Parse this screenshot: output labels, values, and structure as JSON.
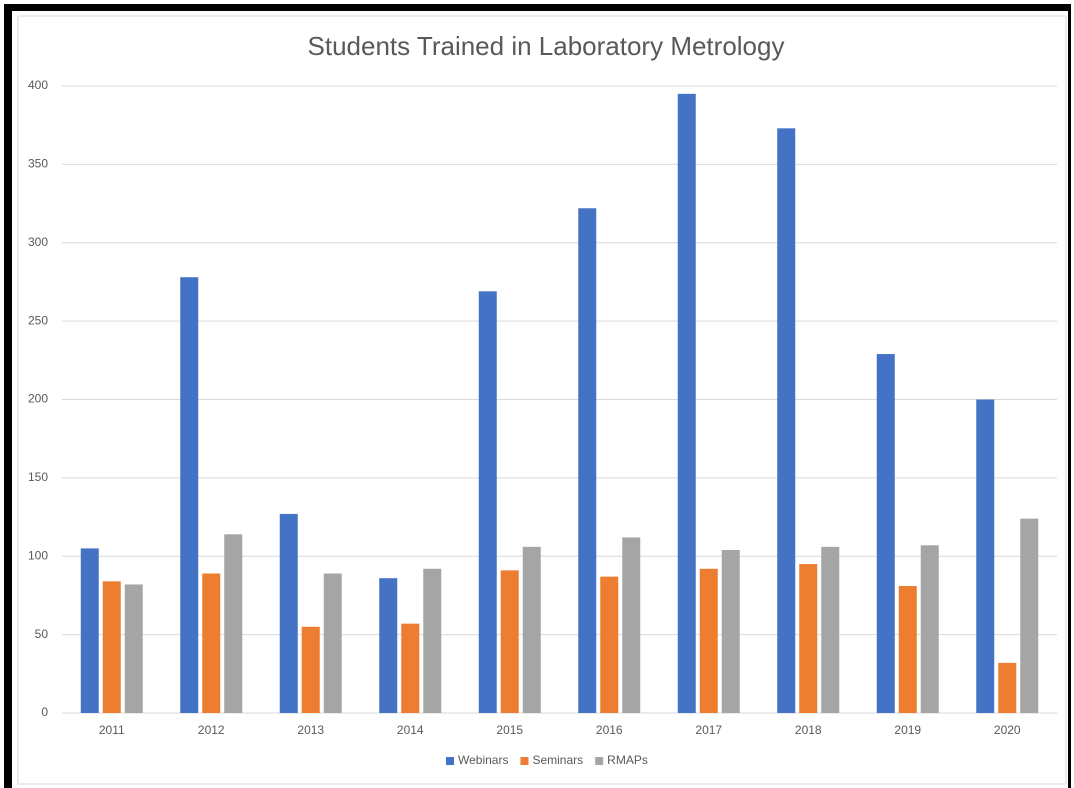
{
  "chart_data": {
    "type": "bar",
    "title": "Students Trained in Laboratory Metrology",
    "categories": [
      "2011",
      "2012",
      "2013",
      "2014",
      "2015",
      "2016",
      "2017",
      "2018",
      "2019",
      "2020"
    ],
    "series": [
      {
        "name": "Webinars",
        "color": "#4472c4",
        "values": [
          105,
          278,
          127,
          86,
          269,
          322,
          395,
          373,
          229,
          200
        ]
      },
      {
        "name": "Seminars",
        "color": "#ed7d31",
        "values": [
          84,
          89,
          55,
          57,
          91,
          87,
          92,
          95,
          81,
          32
        ]
      },
      {
        "name": "RMAPs",
        "color": "#a5a5a5",
        "values": [
          82,
          114,
          89,
          92,
          106,
          112,
          104,
          106,
          107,
          124
        ]
      }
    ],
    "ylim": [
      0,
      400
    ],
    "yticks": [
      0,
      50,
      100,
      150,
      200,
      250,
      300,
      350,
      400
    ],
    "grid": true,
    "legend": "bottom"
  }
}
